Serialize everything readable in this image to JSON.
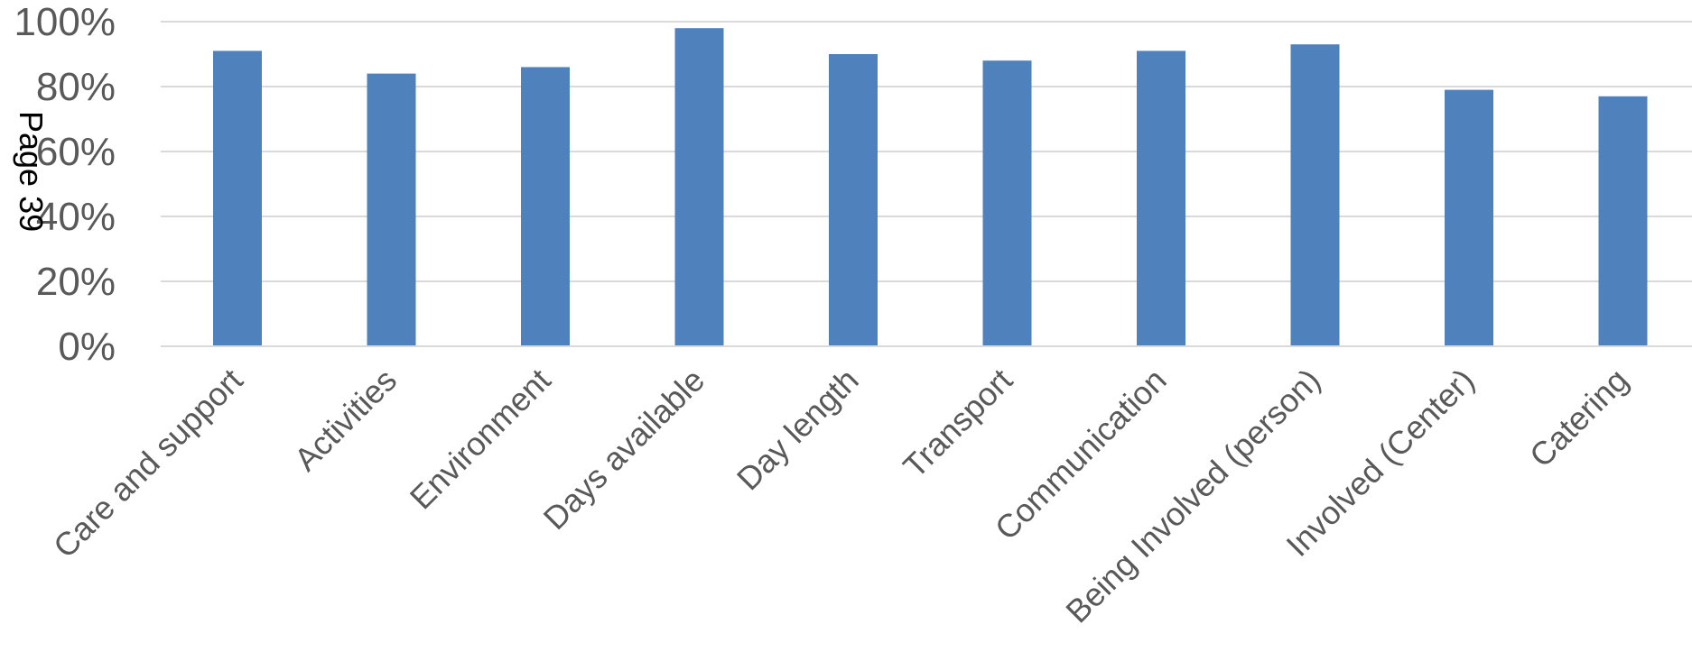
{
  "page_label": "Page 39",
  "chart_data": {
    "type": "bar",
    "categories": [
      "Care and support",
      "Activities",
      "Environment",
      "Days available",
      "Day length",
      "Transport",
      "Communication",
      "Being Involved (person)",
      "Involved (Center)",
      "Catering"
    ],
    "values": [
      91,
      84,
      86,
      98,
      90,
      88,
      91,
      93,
      79,
      77
    ],
    "ylim": [
      0,
      100
    ],
    "yticks": [
      "0%",
      "20%",
      "40%",
      "60%",
      "80%",
      "100%"
    ],
    "grid": true,
    "colors": {
      "bar": "#4f81bd",
      "grid": "#d9d9d9",
      "axis": "#d9d9d9"
    }
  }
}
